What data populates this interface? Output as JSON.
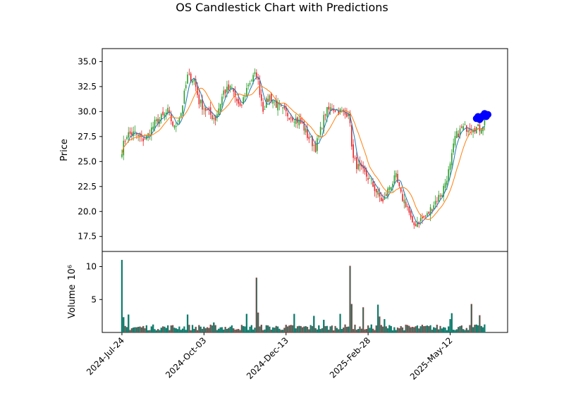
{
  "chart_data": {
    "type": "candlestick",
    "title": "OS Candlestick Chart with Predictions",
    "price_panel": {
      "ylabel": "Price",
      "ylim": [
        16.0,
        36.3
      ],
      "yticks": [
        17.5,
        20.0,
        22.5,
        25.0,
        27.5,
        30.0,
        32.5,
        35.0
      ],
      "ytick_labels": [
        "17.5",
        "20.0",
        "22.5",
        "25.0",
        "27.5",
        "30.0",
        "32.5",
        "35.0"
      ]
    },
    "volume_panel": {
      "ylabel": "Volume",
      "ylabel_exponent": "10⁶",
      "ylim": [
        0,
        12.3
      ],
      "yticks": [
        5,
        10
      ],
      "ytick_labels": [
        "5",
        "10"
      ]
    },
    "x_ticks": [
      {
        "label": "2024-Jul-24",
        "index": 0
      },
      {
        "label": "2024-Oct-03",
        "index": 50
      },
      {
        "label": "2024-Dec-13",
        "index": 100
      },
      {
        "label": "2025-Feb-28",
        "index": 150
      },
      {
        "label": "2025-May-12",
        "index": 200
      }
    ],
    "x_range": [
      -12,
      235
    ],
    "close_anchors": [
      [
        0,
        26.2
      ],
      [
        3,
        27.7
      ],
      [
        8,
        27.8
      ],
      [
        12,
        27.2
      ],
      [
        15,
        27.4
      ],
      [
        20,
        28.8
      ],
      [
        25,
        29.5
      ],
      [
        28,
        30.0
      ],
      [
        32,
        28.3
      ],
      [
        36,
        29.9
      ],
      [
        40,
        33.5
      ],
      [
        44,
        33.2
      ],
      [
        47,
        31.0
      ],
      [
        53,
        29.8
      ],
      [
        57,
        29.3
      ],
      [
        62,
        32.0
      ],
      [
        67,
        32.3
      ],
      [
        72,
        30.2
      ],
      [
        77,
        32.8
      ],
      [
        82,
        33.8
      ],
      [
        86,
        30.3
      ],
      [
        90,
        31.5
      ],
      [
        95,
        30.5
      ],
      [
        100,
        29.8
      ],
      [
        105,
        29.4
      ],
      [
        110,
        28.7
      ],
      [
        113,
        27.6
      ],
      [
        118,
        26.4
      ],
      [
        120,
        27.5
      ],
      [
        124,
        29.9
      ],
      [
        128,
        30.4
      ],
      [
        132,
        30.1
      ],
      [
        136,
        29.7
      ],
      [
        138,
        30.1
      ],
      [
        141,
        25.2
      ],
      [
        144,
        24.4
      ],
      [
        150,
        23.4
      ],
      [
        155,
        22.0
      ],
      [
        159,
        20.9
      ],
      [
        163,
        22.5
      ],
      [
        167,
        23.4
      ],
      [
        170,
        21.6
      ],
      [
        174,
        20.5
      ],
      [
        177,
        18.5
      ],
      [
        181,
        19.1
      ],
      [
        186,
        19.6
      ],
      [
        190,
        20.8
      ],
      [
        195,
        21.9
      ],
      [
        200,
        24.5
      ],
      [
        203,
        27.4
      ],
      [
        207,
        28.3
      ],
      [
        213,
        28.5
      ],
      [
        218,
        28.3
      ],
      [
        221,
        29.0
      ]
    ],
    "volume_spikes": [
      [
        0,
        11.0
      ],
      [
        1,
        2.3
      ],
      [
        4,
        2.7
      ],
      [
        40,
        2.7
      ],
      [
        56,
        1.5
      ],
      [
        76,
        2.8
      ],
      [
        82,
        8.3
      ],
      [
        83,
        3.0
      ],
      [
        105,
        2.8
      ],
      [
        117,
        2.5
      ],
      [
        123,
        1.9
      ],
      [
        133,
        2.8
      ],
      [
        139,
        10.1
      ],
      [
        140,
        4.3
      ],
      [
        147,
        3.8
      ],
      [
        156,
        4.2
      ],
      [
        157,
        2.4
      ],
      [
        160,
        2.0
      ],
      [
        200,
        2.0
      ],
      [
        201,
        2.9
      ],
      [
        213,
        4.3
      ],
      [
        218,
        2.6
      ]
    ],
    "predictions": [
      {
        "x": 216,
        "y": 29.3
      },
      {
        "x": 217,
        "y": 29.5
      },
      {
        "x": 218,
        "y": 29.2
      },
      {
        "x": 219,
        "y": 29.4
      },
      {
        "x": 220,
        "y": 29.6
      },
      {
        "x": 221,
        "y": 29.8
      },
      {
        "x": 222,
        "y": 29.5
      },
      {
        "x": 223,
        "y": 29.7
      }
    ],
    "colors": {
      "up": "#2ca02c",
      "down": "#e8272b",
      "volume": "#0f7a6b",
      "sma_short": "#1f77b4",
      "sma_long": "#ff7f0e",
      "prediction_marker": "#0000ff",
      "prediction_line": "#ff0000"
    }
  }
}
